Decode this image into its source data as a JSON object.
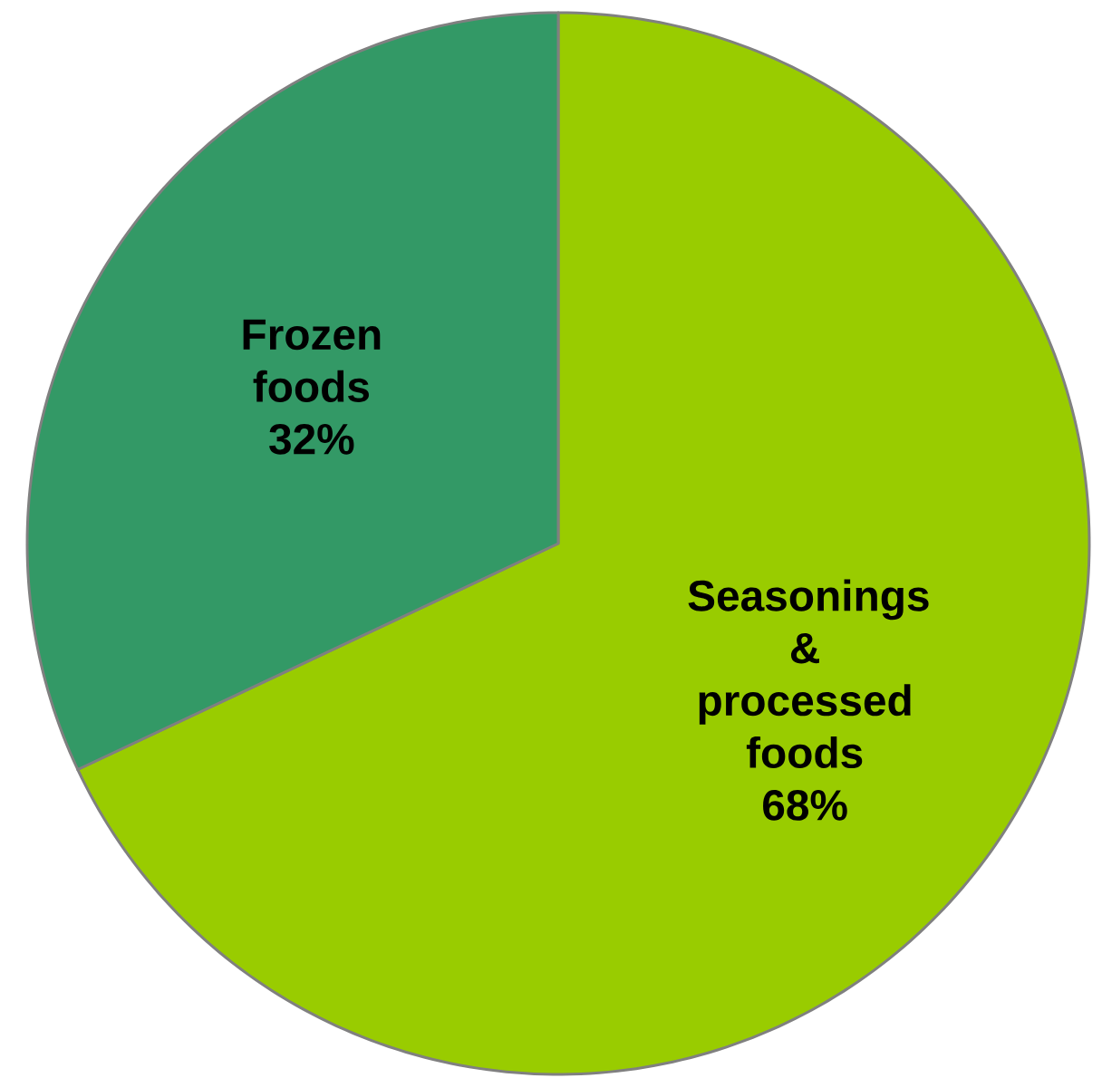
{
  "chart_data": {
    "type": "pie",
    "categories": [
      "Seasonings & processed foods",
      "Frozen foods"
    ],
    "values": [
      68,
      32
    ],
    "colors": [
      "#99cc00",
      "#339966"
    ],
    "value_labels": [
      "68%",
      "32%"
    ]
  }
}
